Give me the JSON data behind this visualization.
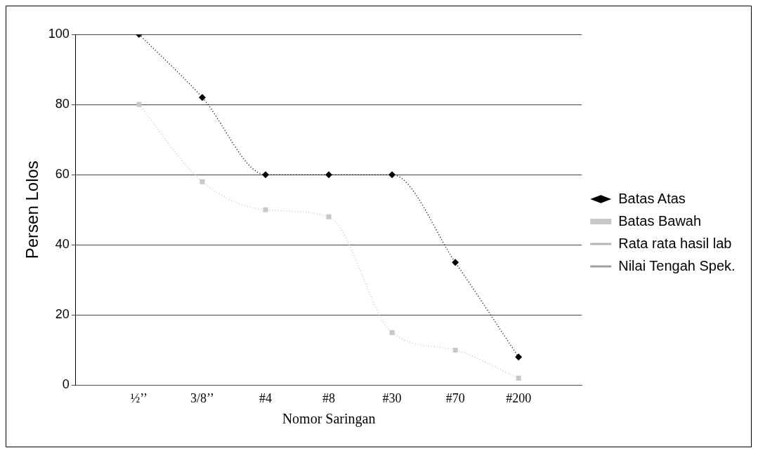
{
  "chart_data": {
    "type": "line",
    "xlabel": "Nomor Saringan",
    "ylabel": "Persen Lolos",
    "categories": [
      null,
      "½’’",
      "3/8’’",
      "#4",
      "#8",
      "#30",
      "#70",
      "#200",
      null
    ],
    "series": [
      {
        "name": "Batas Atas",
        "color": "#000000",
        "values": [
          null,
          100,
          82,
          60,
          60,
          60,
          35,
          8,
          null
        ],
        "marker": "diamond",
        "line_style": "dotted"
      },
      {
        "name": "Batas Bawah",
        "color": "#c8c8c8",
        "values": [
          null,
          80,
          58,
          50,
          48,
          15,
          10,
          2,
          null
        ],
        "marker": "square",
        "line_style": "dotted"
      },
      {
        "name": "Rata rata hasil lab",
        "color": "#b4b4b4",
        "values": [
          null,
          null,
          null,
          null,
          null,
          null,
          null,
          null,
          null
        ],
        "marker": "none",
        "line_style": "dotted"
      },
      {
        "name": "Nilai Tengah Spek.",
        "color": "#a0a0a0",
        "values": [
          null,
          null,
          null,
          null,
          null,
          null,
          null,
          null,
          null
        ],
        "marker": "none",
        "line_style": "dotted"
      }
    ],
    "ylim": [
      0,
      100
    ],
    "yticks": [
      0,
      20,
      40,
      60,
      80,
      100
    ],
    "grid": "y",
    "legend": "right"
  }
}
